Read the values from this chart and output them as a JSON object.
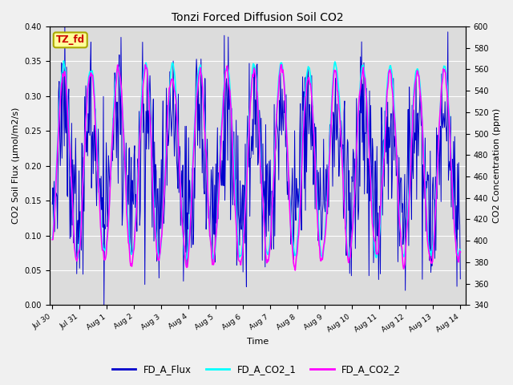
{
  "title": "Tonzi Forced Diffusion Soil CO2",
  "xlabel": "Time",
  "ylabel_left": "CO2 Soil Flux (μmol/m2/s)",
  "ylabel_right": "CO2 Concentration (ppm)",
  "ylim_left": [
    0.0,
    0.4
  ],
  "ylim_right": [
    340,
    600
  ],
  "yticks_left": [
    0.0,
    0.05,
    0.1,
    0.15,
    0.2,
    0.25,
    0.3,
    0.35,
    0.4
  ],
  "yticks_right": [
    340,
    360,
    380,
    400,
    420,
    440,
    460,
    480,
    500,
    520,
    540,
    560,
    580,
    600
  ],
  "legend_labels": [
    "FD_A_Flux",
    "FD_A_CO2_1",
    "FD_A_CO2_2"
  ],
  "legend_colors": [
    "#0000cc",
    "#00ffff",
    "#ff00ff"
  ],
  "flux_color": "#0000cc",
  "co2_1_color": "#00ffff",
  "co2_2_color": "#ff00ff",
  "tab_label": "TZ_fd",
  "tab_text_color": "#cc0000",
  "tab_bg_color": "#ffff99",
  "tab_border_color": "#aaa800",
  "plot_bg_color": "#dcdcdc",
  "fig_bg_color": "#f0f0f0",
  "grid_color": "#ffffff",
  "n_days": 15,
  "pts_per_day": 48,
  "xtick_positions": [
    0,
    1,
    2,
    3,
    4,
    5,
    6,
    7,
    8,
    9,
    10,
    11,
    12,
    13,
    14,
    15
  ],
  "xtick_labels": [
    "Jul 30",
    "Jul 31",
    "Aug 1",
    "Aug 2",
    "Aug 3",
    "Aug 4",
    "Aug 5",
    "Aug 6",
    "Aug 7",
    "Aug 8",
    "Aug 9",
    "Aug 10",
    "Aug 11",
    "Aug 12",
    "Aug 13",
    "Aug 14"
  ]
}
